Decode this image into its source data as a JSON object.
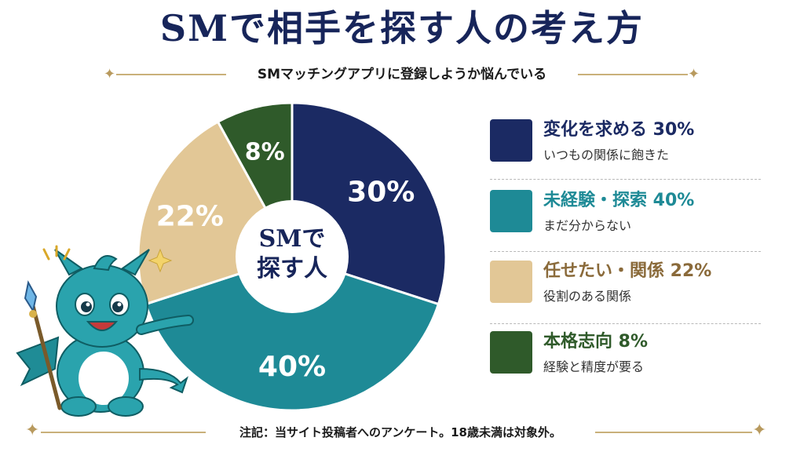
{
  "title": "SMで相手を探す人の考え方",
  "subtitle": "SMマッチングアプリに登録しようか悩んでいる",
  "footer": "注記：当サイト投稿者へのアンケート。18歳未満は対象外。",
  "center_label": [
    "SMで",
    "探す人"
  ],
  "colors": {
    "title": "#17255a",
    "gold": "#c9b07a"
  },
  "legend": [
    {
      "title": "変化を求める 30%",
      "sub": "いつもの関係に飽きた",
      "color": "#1b2a63"
    },
    {
      "title": "未経験・探索 40%",
      "sub": "まだ分からない",
      "color": "#1e8a96"
    },
    {
      "title": "任せたい・関係 22%",
      "sub": "役割のある関係",
      "color": "#e2c796"
    },
    {
      "title": "本格志向 8%",
      "sub": "経験と精度が要る",
      "color": "#2f5a2a"
    }
  ],
  "chart_data": {
    "type": "pie",
    "categories": [
      "変化を求める",
      "未経験・探索",
      "任せたい・関係",
      "本格志向"
    ],
    "values": [
      30,
      40,
      22,
      8
    ],
    "data_labels": [
      "30%",
      "40%",
      "22%",
      "8%"
    ],
    "colors": [
      "#1b2a63",
      "#1e8a96",
      "#e2c796",
      "#2f5a2a"
    ],
    "label_colors": [
      "#ffffff",
      "#ffffff",
      "#ffffff",
      "#ffffff"
    ],
    "start": "top",
    "direction": "clockwise",
    "donut": true
  }
}
